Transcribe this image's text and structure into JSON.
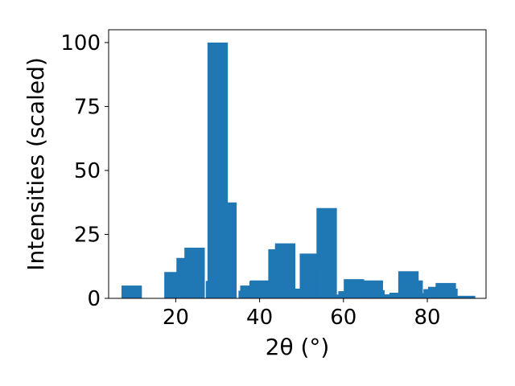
{
  "chart_data": {
    "type": "bar",
    "xlabel": "2θ (°)",
    "ylabel": "Intensities (scaled)",
    "xlim": [
      4.0,
      94.0
    ],
    "ylim": [
      0,
      105
    ],
    "xticks": [
      20,
      40,
      60,
      80
    ],
    "yticks": [
      0,
      25,
      50,
      75,
      100
    ],
    "grid": false,
    "bar_color": "#1f77b4",
    "x": [
      9.5,
      19.7,
      19.9,
      22.6,
      24.5,
      29.6,
      30.0,
      32.1,
      37.4,
      37.8,
      40.0,
      40.2,
      44.5,
      46.1,
      47.2,
      50.5,
      50.8,
      52.0,
      52.6,
      55.6,
      55.8,
      56.0,
      60.8,
      61.2,
      62.5,
      66.6,
      67.0,
      67.4,
      70.8,
      71.0,
      72.0,
      72.6,
      73.4,
      75.5,
      76.5,
      77.8,
      80.2,
      81.5,
      82.6,
      84.4,
      84.8,
      85.6,
      86.2,
      89.0
    ],
    "values": [
      5,
      10.3,
      10,
      15.8,
      19.8,
      6.8,
      100,
      37.5,
      3,
      5,
      6.8,
      7,
      19.2,
      21.5,
      0.5,
      3.8,
      3.5,
      17.5,
      5,
      5,
      12.5,
      35.3,
      1.5,
      2.8,
      7.5,
      3.3,
      7,
      3.2,
      1.5,
      1.5,
      1.2,
      1.5,
      2.2,
      10.6,
      7,
      2,
      2,
      3.6,
      4.5,
      6,
      3.8,
      0.3,
      0.3,
      1
    ]
  }
}
